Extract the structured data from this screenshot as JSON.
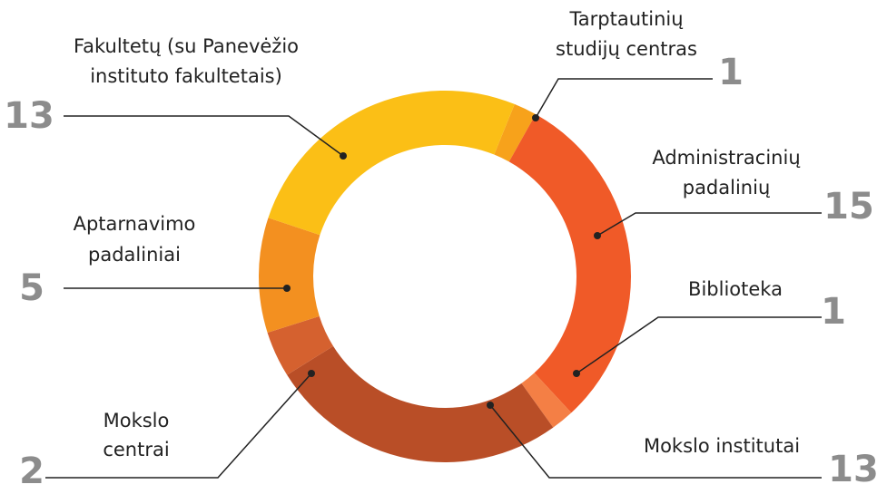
{
  "chart_data": {
    "type": "donut",
    "categories": [
      [
        "Tarptautinių",
        "studijų centras"
      ],
      [
        "Administracinių",
        "padalinių"
      ],
      [
        "Biblioteka"
      ],
      [
        "Mokslo institutai"
      ],
      [
        "Mokslo",
        "centrai"
      ],
      [
        "Aptarnavimo",
        "padaliniai"
      ],
      [
        "Fakultetų  (su Panevėžio",
        "instituto fakultetais)"
      ]
    ],
    "values": [
      1,
      15,
      1,
      13,
      2,
      5,
      13
    ],
    "colors": [
      "#f7a21b",
      "#f05a28",
      "#f47f45",
      "#b94e27",
      "#d5612f",
      "#f39020",
      "#fbbf16"
    ]
  }
}
